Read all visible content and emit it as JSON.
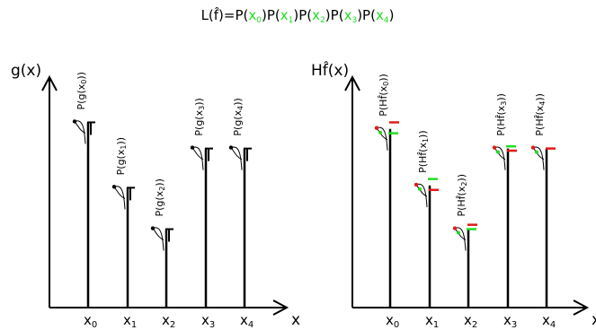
{
  "title": {
    "prefix": "L(f̂)=",
    "terms": [
      {
        "pre": "P(",
        "var": "x",
        "sub": "0",
        "post": ")"
      },
      {
        "pre": "P(",
        "var": "x",
        "sub": "1",
        "post": ")"
      },
      {
        "pre": "P(",
        "var": "x",
        "sub": "2",
        "post": ")"
      },
      {
        "pre": "P(",
        "var": "x",
        "sub": "3",
        "post": ")"
      },
      {
        "pre": "P(",
        "var": "x",
        "sub": "4",
        "post": ")"
      }
    ]
  },
  "colors": {
    "ink": "#000000",
    "green": "#22dd22",
    "red": "#e21a1a"
  },
  "left_panel": {
    "y_axis_label": "g(x)",
    "x_axis_label": "x",
    "x_ticks": [
      {
        "var": "x",
        "sub": "0"
      },
      {
        "var": "x",
        "sub": "1"
      },
      {
        "var": "x",
        "sub": "2"
      },
      {
        "var": "x",
        "sub": "3"
      },
      {
        "var": "x",
        "sub": "4"
      }
    ],
    "samples": [
      {
        "label_pre": "P(g(x",
        "sub": "0",
        "label_post": "))",
        "value": 0.85
      },
      {
        "label_pre": "P(g(x",
        "sub": "1",
        "label_post": "))",
        "value": 0.55
      },
      {
        "label_pre": "P(g(x",
        "sub": "2",
        "label_post": "))",
        "value": 0.36
      },
      {
        "label_pre": "P(g(x",
        "sub": "3",
        "label_post": "))",
        "value": 0.73
      },
      {
        "label_pre": "P(g(x",
        "sub": "4",
        "label_post": "))",
        "value": 0.73
      }
    ]
  },
  "right_panel": {
    "y_axis_label": "Hf̂(x)",
    "x_axis_label": "x",
    "x_ticks": [
      {
        "var": "x",
        "sub": "0"
      },
      {
        "var": "x",
        "sub": "1"
      },
      {
        "var": "x",
        "sub": "2"
      },
      {
        "var": "x",
        "sub": "3"
      },
      {
        "var": "x",
        "sub": "4"
      }
    ],
    "samples": [
      {
        "label_pre": "P(Hf̂(x",
        "sub": "0",
        "label_post": "))",
        "value": 0.82,
        "green_offset": -0.02,
        "red_offset": 0.03
      },
      {
        "label_pre": "P(Hf̂(x",
        "sub": "1",
        "label_post": "))",
        "value": 0.56,
        "green_offset": 0.03,
        "red_offset": -0.02
      },
      {
        "label_pre": "P(Hf̂(x",
        "sub": "2",
        "label_post": "))",
        "value": 0.36,
        "green_offset": 0.0,
        "red_offset": 0.02
      },
      {
        "label_pre": "P(Hf̂(x",
        "sub": "3",
        "label_post": "))",
        "value": 0.73,
        "green_offset": 0.01,
        "red_offset": -0.01
      },
      {
        "label_pre": "P(Hf̂(x",
        "sub": "4",
        "label_post": "))",
        "value": 0.73,
        "green_offset": null,
        "red_offset": 0.0
      }
    ]
  }
}
